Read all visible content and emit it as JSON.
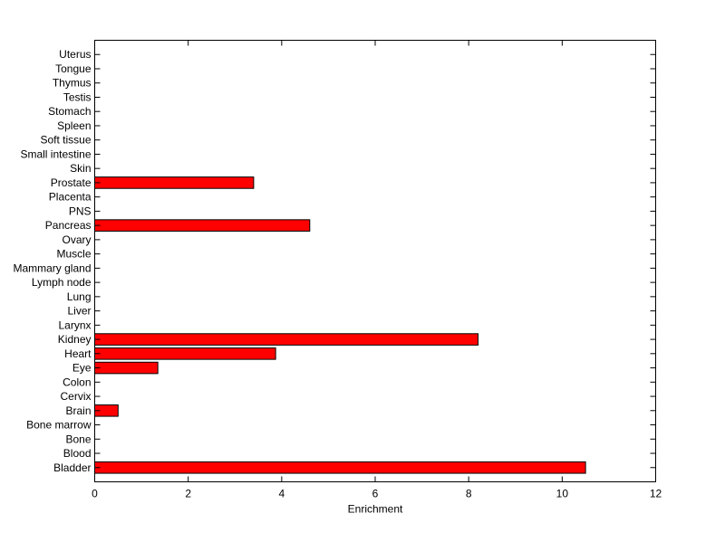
{
  "chart_data": {
    "type": "bar",
    "orientation": "horizontal",
    "categories": [
      "Bladder",
      "Blood",
      "Bone",
      "Bone marrow",
      "Brain",
      "Cervix",
      "Colon",
      "Eye",
      "Heart",
      "Kidney",
      "Larynx",
      "Liver",
      "Lung",
      "Lymph node",
      "Mammary gland",
      "Muscle",
      "Ovary",
      "Pancreas",
      "PNS",
      "Placenta",
      "Prostate",
      "Skin",
      "Small intestine",
      "Soft tissue",
      "Spleen",
      "Stomach",
      "Testis",
      "Thymus",
      "Tongue",
      "Uterus"
    ],
    "values": [
      10.5,
      0,
      0,
      0,
      0.5,
      0,
      0,
      1.35,
      3.87,
      8.2,
      0,
      0,
      0,
      0,
      0,
      0,
      0,
      4.6,
      0,
      0,
      3.4,
      0,
      0,
      0,
      0,
      0,
      0,
      0,
      0,
      0
    ],
    "xlabel": "Enrichment",
    "ylabel": "",
    "title": "",
    "xlim": [
      0,
      12
    ],
    "xticks": [
      "0",
      "2",
      "4",
      "6",
      "8",
      "10",
      "12"
    ],
    "grid": false,
    "bar_color": "#ff0000"
  }
}
